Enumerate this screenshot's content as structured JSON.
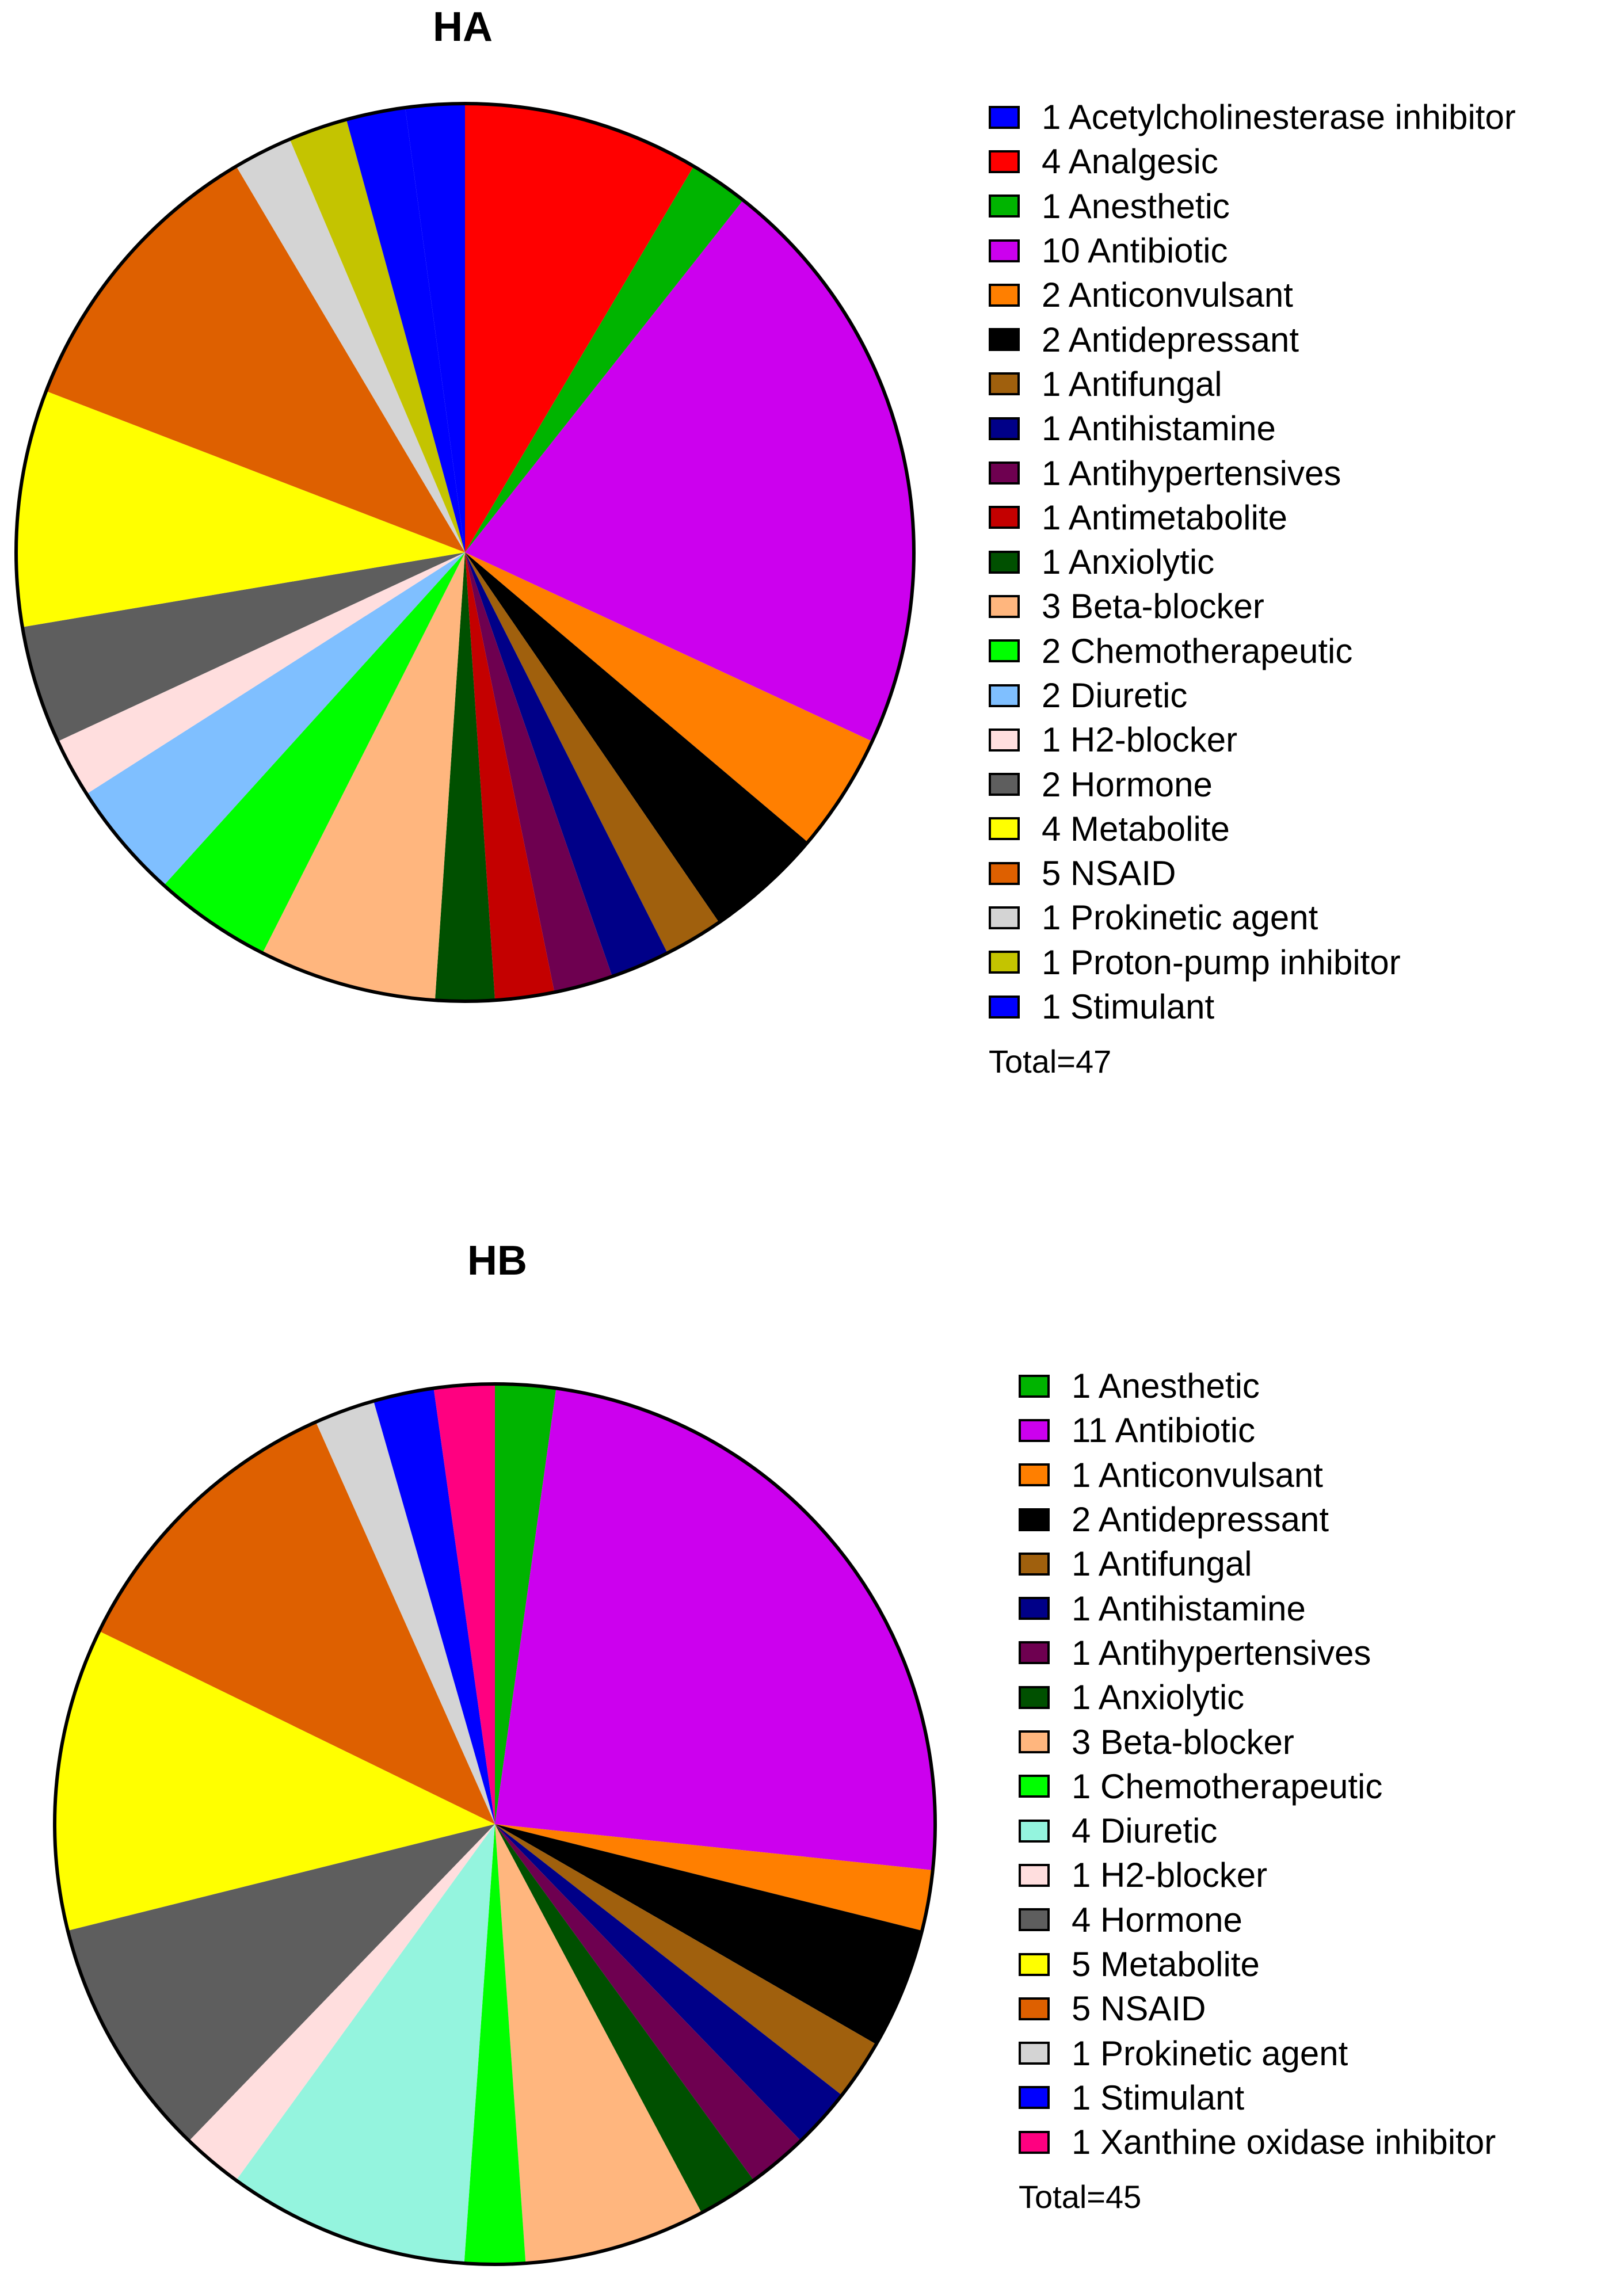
{
  "chart_data": [
    {
      "type": "pie",
      "title": "HA",
      "total_label": "Total=47",
      "slices": [
        {
          "label": "1 Acetylcholinesterase inhibitor",
          "value": 1,
          "color": "#0000ff"
        },
        {
          "label": "4 Analgesic",
          "value": 4,
          "color": "#ff0000"
        },
        {
          "label": "1 Anesthetic",
          "value": 1,
          "color": "#00b400"
        },
        {
          "label": "10 Antibiotic",
          "value": 10,
          "color": "#cc00ee"
        },
        {
          "label": "2 Anticonvulsant",
          "value": 2,
          "color": "#ff7f00"
        },
        {
          "label": "2 Antidepressant",
          "value": 2,
          "color": "#000000"
        },
        {
          "label": "1 Antifungal",
          "value": 1,
          "color": "#a0600d"
        },
        {
          "label": "1 Antihistamine",
          "value": 1,
          "color": "#000088"
        },
        {
          "label": "1 Antihypertensives",
          "value": 1,
          "color": "#6e0050"
        },
        {
          "label": "1 Antimetabolite",
          "value": 1,
          "color": "#c40000"
        },
        {
          "label": "1 Anxiolytic",
          "value": 1,
          "color": "#005000"
        },
        {
          "label": "3 Beta-blocker",
          "value": 3,
          "color": "#ffb67e"
        },
        {
          "label": "2 Chemotherapeutic",
          "value": 2,
          "color": "#00ff00"
        },
        {
          "label": "2 Diuretic",
          "value": 2,
          "color": "#7fbfff"
        },
        {
          "label": "1 H2-blocker",
          "value": 1,
          "color": "#ffdede"
        },
        {
          "label": "2 Hormone",
          "value": 2,
          "color": "#5e5e5e"
        },
        {
          "label": "4 Metabolite",
          "value": 4,
          "color": "#ffff00"
        },
        {
          "label": "5 NSAID",
          "value": 5,
          "color": "#de6000"
        },
        {
          "label": "1 Prokinetic agent",
          "value": 1,
          "color": "#d4d4d4"
        },
        {
          "label": "1 Proton-pump inhibitor",
          "value": 1,
          "color": "#c4c400"
        },
        {
          "label": "1 Stimulant",
          "value": 1,
          "color": "#0000ff"
        }
      ],
      "pie_order": [
        "1 Stimulant",
        "4 Analgesic",
        "1 Anesthetic",
        "10 Antibiotic",
        "2 Anticonvulsant",
        "2 Antidepressant",
        "1 Antifungal",
        "1 Antihistamine",
        "1 Antihypertensives",
        "1 Antimetabolite",
        "1 Anxiolytic",
        "3 Beta-blocker",
        "2 Chemotherapeutic",
        "2 Diuretic",
        "1 H2-blocker",
        "2 Hormone",
        "4 Metabolite",
        "5 NSAID",
        "1 Prokinetic agent",
        "1 Proton-pump inhibitor",
        "1 Acetylcholinesterase inhibitor"
      ]
    },
    {
      "type": "pie",
      "title": "HB",
      "total_label": "Total=45",
      "slices": [
        {
          "label": "1 Anesthetic",
          "value": 1,
          "color": "#00b400"
        },
        {
          "label": "11 Antibiotic",
          "value": 11,
          "color": "#cc00ee"
        },
        {
          "label": "1 Anticonvulsant",
          "value": 1,
          "color": "#ff7f00"
        },
        {
          "label": "2 Antidepressant",
          "value": 2,
          "color": "#000000"
        },
        {
          "label": "1 Antifungal",
          "value": 1,
          "color": "#a0600d"
        },
        {
          "label": "1 Antihistamine",
          "value": 1,
          "color": "#000088"
        },
        {
          "label": "1 Antihypertensives",
          "value": 1,
          "color": "#6e0050"
        },
        {
          "label": "1 Anxiolytic",
          "value": 1,
          "color": "#005000"
        },
        {
          "label": "3 Beta-blocker",
          "value": 3,
          "color": "#ffb67e"
        },
        {
          "label": "1 Chemotherapeutic",
          "value": 1,
          "color": "#00ff00"
        },
        {
          "label": "4 Diuretic",
          "value": 4,
          "color": "#94f4de"
        },
        {
          "label": "1 H2-blocker",
          "value": 1,
          "color": "#ffdede"
        },
        {
          "label": "4 Hormone",
          "value": 4,
          "color": "#5e5e5e"
        },
        {
          "label": "5 Metabolite",
          "value": 5,
          "color": "#ffff00"
        },
        {
          "label": "5 NSAID",
          "value": 5,
          "color": "#de6000"
        },
        {
          "label": "1 Prokinetic agent",
          "value": 1,
          "color": "#d4d4d4"
        },
        {
          "label": "1 Stimulant",
          "value": 1,
          "color": "#0000ff"
        },
        {
          "label": "1 Xanthine oxidase inhibitor",
          "value": 1,
          "color": "#ff0080"
        }
      ]
    }
  ]
}
